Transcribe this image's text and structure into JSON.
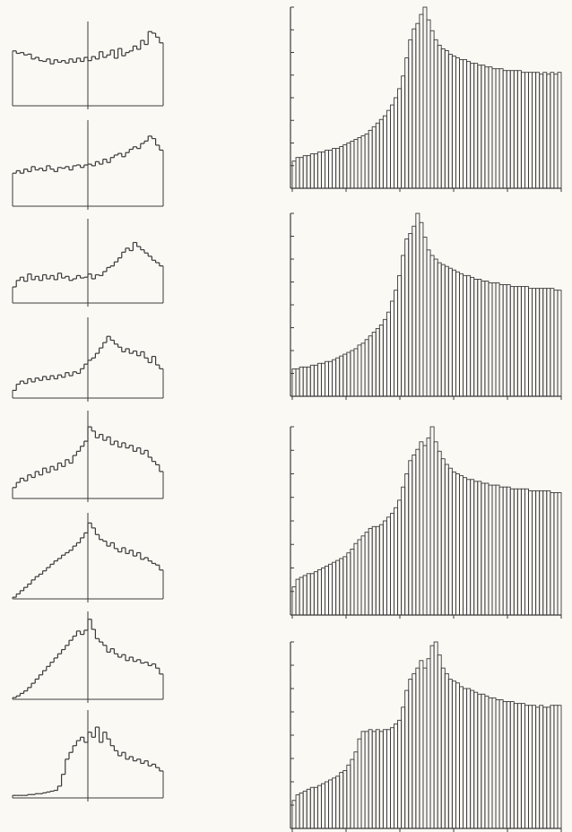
{
  "figure": {
    "ink_color": "#3a3a3a",
    "paper_color": "#fbf9f4"
  },
  "chart_data": [
    {
      "type": "line",
      "group": "left",
      "step": true,
      "title": "",
      "xlabel": "",
      "ylabel": "",
      "ylim": [
        0,
        10
      ],
      "x_count": 40,
      "marker_at_index": 20,
      "series": [
        {
          "values": [
            6.8,
            6.5,
            6.6,
            6.3,
            6.4,
            5.8,
            6.0,
            5.6,
            5.5,
            5.8,
            5.2,
            5.7,
            5.4,
            5.6,
            5.3,
            5.8,
            5.4,
            5.9,
            5.5,
            6.0,
            5.6,
            6.1,
            5.8,
            6.7,
            6.0,
            6.3,
            6.9,
            5.9,
            7.1,
            6.2,
            6.6,
            6.8,
            7.4,
            7.0,
            8.1,
            7.6,
            9.2,
            9.0,
            8.5,
            7.8
          ]
        }
      ]
    },
    {
      "type": "line",
      "group": "left",
      "step": true,
      "title": "",
      "xlabel": "",
      "ylabel": "",
      "ylim": [
        0,
        10
      ],
      "x_count": 40,
      "marker_at_index": 20,
      "series": [
        {
          "values": [
            4.0,
            4.3,
            4.0,
            4.5,
            4.2,
            4.8,
            4.4,
            4.6,
            4.3,
            4.9,
            4.5,
            4.2,
            4.7,
            4.6,
            4.8,
            4.4,
            4.9,
            5.0,
            4.7,
            5.0,
            5.1,
            4.9,
            5.4,
            5.1,
            5.7,
            5.3,
            5.9,
            6.2,
            6.4,
            6.0,
            6.5,
            6.9,
            7.2,
            7.0,
            7.6,
            7.9,
            8.5,
            8.2,
            7.4,
            6.8
          ]
        }
      ]
    },
    {
      "type": "line",
      "group": "left",
      "step": true,
      "title": "",
      "xlabel": "",
      "ylabel": "",
      "ylim": [
        0,
        10
      ],
      "x_count": 40,
      "marker_at_index": 20,
      "series": [
        {
          "values": [
            2.0,
            2.8,
            3.2,
            2.7,
            3.6,
            2.9,
            3.3,
            2.8,
            3.5,
            3.0,
            3.4,
            2.9,
            3.7,
            3.1,
            3.3,
            2.8,
            3.0,
            3.4,
            3.1,
            3.2,
            3.6,
            3.0,
            3.5,
            3.4,
            3.9,
            4.4,
            4.6,
            5.1,
            5.6,
            6.3,
            6.8,
            6.5,
            7.5,
            7.0,
            6.6,
            6.2,
            5.8,
            5.3,
            5.0,
            4.6
          ]
        }
      ]
    },
    {
      "type": "line",
      "group": "left",
      "step": true,
      "title": "",
      "xlabel": "",
      "ylabel": "",
      "ylim": [
        0,
        10
      ],
      "x_count": 40,
      "marker_at_index": 20,
      "series": [
        {
          "values": [
            1.0,
            1.8,
            2.2,
            1.9,
            2.5,
            2.1,
            2.6,
            2.3,
            2.8,
            2.4,
            2.9,
            2.5,
            3.0,
            2.7,
            3.3,
            2.9,
            3.4,
            3.2,
            3.8,
            4.4,
            4.9,
            5.2,
            5.8,
            6.5,
            7.2,
            8.0,
            7.5,
            7.0,
            6.6,
            6.0,
            6.4,
            5.8,
            6.1,
            5.5,
            6.0,
            5.2,
            4.6,
            5.4,
            4.3,
            3.8
          ]
        }
      ]
    },
    {
      "type": "line",
      "group": "left",
      "step": true,
      "title": "",
      "xlabel": "",
      "ylabel": "",
      "ylim": [
        0,
        10
      ],
      "x_count": 40,
      "marker_at_index": 20,
      "series": [
        {
          "values": [
            1.3,
            1.9,
            2.4,
            2.1,
            2.8,
            2.5,
            3.2,
            2.8,
            3.6,
            3.1,
            3.8,
            3.4,
            4.2,
            3.8,
            4.6,
            4.2,
            5.1,
            5.6,
            6.2,
            6.8,
            8.5,
            8.0,
            7.2,
            7.6,
            6.9,
            7.3,
            6.4,
            6.8,
            6.1,
            6.6,
            6.0,
            6.3,
            5.6,
            6.0,
            5.3,
            5.7,
            4.9,
            4.4,
            4.0,
            3.2
          ]
        }
      ]
    },
    {
      "type": "line",
      "group": "left",
      "step": true,
      "title": "",
      "xlabel": "",
      "ylabel": "",
      "ylim": [
        0,
        10
      ],
      "x_count": 40,
      "marker_at_index": 20,
      "series": [
        {
          "values": [
            0.2,
            0.6,
            1.0,
            1.4,
            1.8,
            2.3,
            2.7,
            3.0,
            3.4,
            3.8,
            4.2,
            4.6,
            4.9,
            5.3,
            5.6,
            5.9,
            6.4,
            6.8,
            7.4,
            8.0,
            9.2,
            8.6,
            7.8,
            7.2,
            7.0,
            6.4,
            6.8,
            6.1,
            5.7,
            6.2,
            5.5,
            5.9,
            5.2,
            5.6,
            4.8,
            5.0,
            4.6,
            4.3,
            4.1,
            3.5
          ]
        }
      ]
    },
    {
      "type": "line",
      "group": "left",
      "step": true,
      "title": "",
      "xlabel": "",
      "ylabel": "",
      "ylim": [
        0,
        10
      ],
      "x_count": 40,
      "marker_at_index": 20,
      "series": [
        {
          "values": [
            0.2,
            0.4,
            0.7,
            1.0,
            1.4,
            1.9,
            2.4,
            2.9,
            3.4,
            3.9,
            4.4,
            4.9,
            5.4,
            5.9,
            6.4,
            7.0,
            7.5,
            8.1,
            7.7,
            8.2,
            9.5,
            8.3,
            7.2,
            6.8,
            6.4,
            5.6,
            6.0,
            5.4,
            5.0,
            5.3,
            4.6,
            5.0,
            4.5,
            4.7,
            4.3,
            4.4,
            4.0,
            4.2,
            3.7,
            3.0
          ]
        }
      ]
    },
    {
      "type": "line",
      "group": "left",
      "step": true,
      "title": "",
      "xlabel": "",
      "ylabel": "",
      "ylim": [
        0,
        10
      ],
      "x_count": 40,
      "marker_at_index": 20,
      "series": [
        {
          "values": [
            0.3,
            0.3,
            0.3,
            0.3,
            0.4,
            0.4,
            0.5,
            0.5,
            0.6,
            0.7,
            0.8,
            0.9,
            1.4,
            2.8,
            4.6,
            5.4,
            6.2,
            6.8,
            7.2,
            6.6,
            7.8,
            7.2,
            8.4,
            6.6,
            7.8,
            7.0,
            6.2,
            5.6,
            5.0,
            5.4,
            4.6,
            4.9,
            4.4,
            4.6,
            4.1,
            4.4,
            3.8,
            4.0,
            3.6,
            3.2
          ]
        }
      ]
    },
    {
      "type": "bar",
      "group": "right",
      "title": "",
      "xlabel": "",
      "ylabel": "",
      "ylim": [
        0,
        100
      ],
      "y_ticks": 8,
      "x_ticks": 5,
      "values": [
        15,
        17,
        17,
        18,
        18,
        19,
        19,
        20,
        20,
        21,
        21,
        22,
        22,
        23,
        24,
        25,
        26,
        27,
        28,
        29,
        30,
        32,
        34,
        36,
        38,
        40,
        43,
        46,
        50,
        55,
        62,
        72,
        82,
        88,
        91,
        96,
        100,
        93,
        87,
        82,
        79,
        77,
        76,
        74,
        73,
        72,
        71,
        71,
        70,
        69,
        69,
        68,
        68,
        67,
        67,
        66,
        66,
        66,
        65,
        65,
        65,
        65,
        65,
        64,
        64,
        64,
        64,
        64,
        63,
        64,
        63,
        64,
        63,
        64
      ]
    },
    {
      "type": "bar",
      "group": "right",
      "title": "",
      "xlabel": "",
      "ylabel": "",
      "ylim": [
        0,
        100
      ],
      "y_ticks": 8,
      "x_ticks": 5,
      "values": [
        15,
        15,
        16,
        16,
        16,
        17,
        17,
        18,
        18,
        19,
        19,
        20,
        21,
        22,
        23,
        24,
        25,
        26,
        28,
        29,
        31,
        33,
        35,
        37,
        39,
        42,
        46,
        52,
        58,
        66,
        77,
        86,
        89,
        93,
        100,
        95,
        87,
        80,
        77,
        75,
        73,
        72,
        71,
        70,
        69,
        68,
        67,
        66,
        66,
        65,
        64,
        64,
        63,
        63,
        62,
        62,
        62,
        61,
        61,
        61,
        60,
        60,
        60,
        60,
        60,
        59,
        59,
        59,
        59,
        59,
        59,
        59,
        58,
        58
      ]
    },
    {
      "type": "bar",
      "group": "right",
      "title": "",
      "xlabel": "",
      "ylabel": "",
      "ylim": [
        0,
        100
      ],
      "y_ticks": 8,
      "x_ticks": 5,
      "values": [
        15,
        19,
        20,
        21,
        22,
        22,
        23,
        24,
        25,
        26,
        27,
        28,
        29,
        30,
        31,
        33,
        35,
        38,
        40,
        42,
        44,
        46,
        47,
        47,
        48,
        50,
        52,
        54,
        57,
        61,
        68,
        75,
        82,
        85,
        88,
        92,
        90,
        94,
        100,
        92,
        87,
        83,
        80,
        78,
        76,
        75,
        74,
        73,
        72,
        72,
        71,
        71,
        70,
        70,
        69,
        69,
        69,
        68,
        68,
        68,
        67,
        67,
        67,
        67,
        67,
        66,
        66,
        66,
        66,
        66,
        66,
        65,
        65,
        65
      ]
    },
    {
      "type": "bar",
      "group": "right",
      "title": "",
      "xlabel": "",
      "ylabel": "",
      "ylim": [
        0,
        100
      ],
      "y_ticks": 8,
      "x_ticks": 5,
      "values": [
        15,
        18,
        19,
        20,
        21,
        22,
        22,
        23,
        24,
        25,
        26,
        27,
        28,
        30,
        31,
        34,
        37,
        41,
        48,
        52,
        52,
        53,
        52,
        53,
        52,
        53,
        53,
        54,
        56,
        58,
        65,
        74,
        80,
        83,
        86,
        90,
        86,
        91,
        98,
        100,
        93,
        86,
        83,
        80,
        79,
        78,
        76,
        75,
        75,
        74,
        73,
        72,
        72,
        71,
        70,
        70,
        69,
        69,
        68,
        68,
        68,
        67,
        67,
        67,
        66,
        66,
        66,
        65,
        66,
        65,
        65,
        66,
        66,
        66
      ]
    }
  ]
}
